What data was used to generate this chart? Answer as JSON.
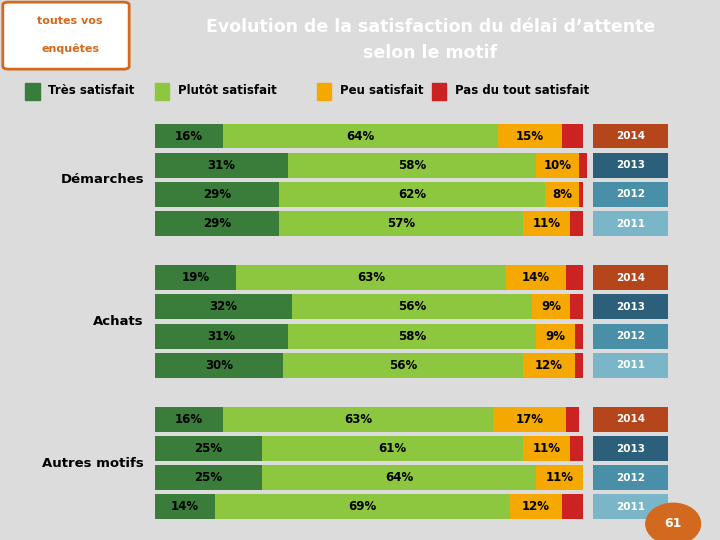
{
  "title_line1": "Evolution de la satisfaction du délai d’attente",
  "title_line2": "selon le motif",
  "title_bg": "#d2691e",
  "title_color": "#ffffff",
  "bg_color": "#dcdcdc",
  "legend_items": [
    "Très satisfait",
    "Plutôt satisfait",
    "Peu satisfait",
    "Pas du tout satisfait"
  ],
  "legend_colors": [
    "#3a7d3a",
    "#8dc63f",
    "#f5a800",
    "#cc2222"
  ],
  "groups": [
    "Démarches",
    "Achats",
    "Autres motifs"
  ],
  "years": [
    "2014",
    "2013",
    "2012",
    "2011"
  ],
  "year_colors": {
    "2014": "#b5451b",
    "2013": "#2c5f7a",
    "2012": "#4a8fa8",
    "2011": "#7ab5c8"
  },
  "data": {
    "Démarches": {
      "2014": [
        16,
        64,
        15,
        5
      ],
      "2013": [
        31,
        58,
        10,
        2
      ],
      "2012": [
        29,
        62,
        8,
        1
      ],
      "2011": [
        29,
        57,
        11,
        3
      ]
    },
    "Achats": {
      "2014": [
        19,
        63,
        14,
        4
      ],
      "2013": [
        32,
        56,
        9,
        3
      ],
      "2012": [
        31,
        58,
        9,
        2
      ],
      "2011": [
        30,
        56,
        12,
        2
      ]
    },
    "Autres motifs": {
      "2014": [
        16,
        63,
        17,
        3
      ],
      "2013": [
        25,
        61,
        11,
        3
      ],
      "2012": [
        25,
        64,
        11,
        0
      ],
      "2011": [
        14,
        69,
        12,
        5
      ]
    }
  },
  "bar_colors": [
    "#3a7d3a",
    "#8dc63f",
    "#f5a800",
    "#cc2222"
  ],
  "page_number": "61"
}
